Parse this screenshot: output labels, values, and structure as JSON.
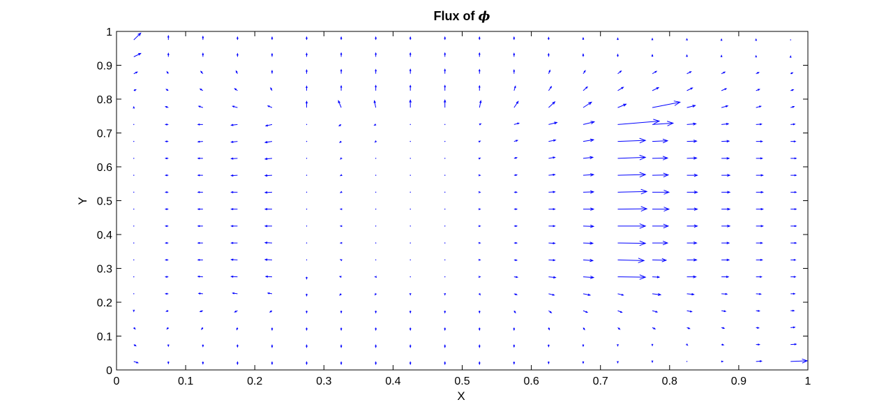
{
  "chart_data": {
    "type": "quiver",
    "title_text": "Flux of ",
    "title_symbol": "ϕ",
    "xlabel": "X",
    "ylabel": "Y",
    "xlim": [
      0,
      1
    ],
    "ylim": [
      0,
      1
    ],
    "xticks": [
      "0",
      "0.1",
      "0.2",
      "0.3",
      "0.4",
      "0.5",
      "0.6",
      "0.7",
      "0.8",
      "0.9",
      "1"
    ],
    "yticks": [
      "0",
      "0.1",
      "0.2",
      "0.3",
      "0.4",
      "0.5",
      "0.6",
      "0.7",
      "0.8",
      "0.9",
      "1"
    ],
    "grid": false,
    "arrow_color": "#0000ff",
    "grid_x": [
      0.025,
      0.075,
      0.125,
      0.175,
      0.225,
      0.275,
      0.325,
      0.375,
      0.425,
      0.475,
      0.525,
      0.575,
      0.625,
      0.675,
      0.725,
      0.775,
      0.825,
      0.875,
      0.925,
      0.975
    ],
    "grid_y": [
      0.975,
      0.925,
      0.875,
      0.825,
      0.775,
      0.725,
      0.675,
      0.625,
      0.575,
      0.525,
      0.475,
      0.425,
      0.375,
      0.325,
      0.275,
      0.225,
      0.175,
      0.125,
      0.075,
      0.025
    ],
    "u": [
      [
        0.01,
        0.0,
        0.0,
        0.0,
        0.0,
        0.0,
        0.0,
        0.0,
        0.0,
        0.0,
        0.0,
        0.0,
        0.0,
        0.0,
        0.0,
        0.0,
        0.0,
        0.0,
        0.0,
        0.0
      ],
      [
        0.01,
        0.0,
        0.0,
        0.0,
        0.0,
        0.0,
        0.0,
        0.0,
        0.0,
        0.0,
        0.0,
        0.0,
        0.0,
        0.0,
        0.0,
        0.0,
        0.0,
        0.0,
        0.0,
        0.0
      ],
      [
        0.005,
        -0.002,
        -0.003,
        -0.002,
        0.0,
        0.0,
        0.0,
        0.0,
        0.0,
        0.0,
        0.0,
        0.0,
        0.002,
        0.003,
        0.005,
        0.006,
        0.006,
        0.005,
        0.004,
        0.003
      ],
      [
        0.003,
        -0.003,
        -0.004,
        -0.004,
        -0.002,
        0.0,
        0.0,
        0.0,
        0.0,
        0.0,
        0.0,
        0.002,
        0.004,
        0.006,
        0.008,
        0.009,
        0.008,
        0.007,
        0.005,
        0.004
      ],
      [
        0.0,
        -0.004,
        -0.006,
        -0.007,
        -0.006,
        0.0,
        -0.004,
        -0.002,
        0.0,
        0.0,
        0.002,
        0.006,
        0.009,
        0.012,
        0.012,
        0.04,
        0.012,
        0.009,
        0.007,
        0.005
      ],
      [
        0.0,
        -0.004,
        -0.007,
        -0.009,
        -0.009,
        0.0,
        -0.003,
        -0.002,
        0.0,
        0.0,
        0.002,
        0.007,
        0.012,
        0.016,
        0.06,
        0.03,
        0.013,
        0.01,
        0.008,
        0.006
      ],
      [
        0.0,
        -0.004,
        -0.007,
        -0.009,
        -0.01,
        0.0,
        -0.002,
        -0.001,
        0.0,
        0.0,
        0.001,
        0.005,
        0.01,
        0.015,
        0.04,
        0.022,
        0.014,
        0.011,
        0.009,
        0.007
      ],
      [
        0.0,
        -0.004,
        -0.007,
        -0.009,
        -0.01,
        0.0,
        -0.001,
        0.0,
        0.0,
        0.0,
        0.001,
        0.004,
        0.009,
        0.014,
        0.04,
        0.022,
        0.014,
        0.011,
        0.009,
        0.008
      ],
      [
        0.0,
        -0.004,
        -0.007,
        -0.009,
        -0.01,
        0.0,
        -0.001,
        0.0,
        0.0,
        0.0,
        0.001,
        0.004,
        0.009,
        0.015,
        0.04,
        0.023,
        0.015,
        0.012,
        0.01,
        0.008
      ],
      [
        0.0,
        -0.004,
        -0.007,
        -0.009,
        -0.01,
        0.0,
        -0.001,
        0.0,
        0.0,
        0.0,
        0.001,
        0.004,
        0.009,
        0.015,
        0.042,
        0.024,
        0.015,
        0.012,
        0.01,
        0.008
      ],
      [
        0.0,
        -0.004,
        -0.007,
        -0.009,
        -0.01,
        0.0,
        -0.001,
        0.0,
        0.0,
        0.0,
        0.001,
        0.004,
        0.009,
        0.015,
        0.042,
        0.024,
        0.015,
        0.012,
        0.01,
        0.008
      ],
      [
        0.0,
        -0.004,
        -0.007,
        -0.009,
        -0.01,
        0.0,
        -0.001,
        0.0,
        0.0,
        0.0,
        0.001,
        0.004,
        0.009,
        0.015,
        0.04,
        0.023,
        0.015,
        0.012,
        0.01,
        0.008
      ],
      [
        0.0,
        -0.004,
        -0.007,
        -0.009,
        -0.01,
        0.0,
        -0.001,
        0.0,
        0.0,
        0.0,
        0.001,
        0.004,
        0.009,
        0.014,
        0.04,
        0.022,
        0.014,
        0.011,
        0.009,
        0.008
      ],
      [
        0.0,
        -0.004,
        -0.007,
        -0.009,
        -0.01,
        0.0,
        -0.001,
        0.0,
        0.0,
        0.0,
        0.001,
        0.004,
        0.009,
        0.014,
        0.038,
        0.02,
        0.014,
        0.011,
        0.009,
        0.007
      ],
      [
        0.0,
        -0.004,
        -0.007,
        -0.009,
        -0.009,
        0.0,
        -0.002,
        -0.001,
        0.0,
        0.0,
        0.001,
        0.005,
        0.01,
        0.015,
        0.04,
        0.01,
        0.013,
        0.01,
        0.008,
        0.007
      ],
      [
        0.0,
        -0.004,
        -0.006,
        -0.007,
        -0.006,
        0.0,
        -0.002,
        -0.001,
        0.0,
        0.0,
        0.001,
        0.004,
        0.008,
        0.01,
        0.008,
        0.012,
        0.01,
        0.008,
        0.007,
        0.006
      ],
      [
        0.0,
        -0.003,
        -0.004,
        -0.004,
        -0.003,
        0.0,
        0.0,
        0.0,
        0.0,
        0.0,
        0.0,
        0.002,
        0.004,
        0.006,
        0.006,
        0.007,
        0.007,
        0.006,
        0.005,
        0.005
      ],
      [
        0.002,
        -0.002,
        -0.002,
        -0.001,
        0.0,
        0.0,
        0.0,
        0.0,
        0.0,
        0.0,
        0.0,
        0.0,
        0.001,
        0.002,
        0.003,
        0.004,
        0.004,
        0.004,
        0.004,
        0.006
      ],
      [
        0.003,
        0.0,
        0.0,
        0.0,
        0.0,
        0.0,
        0.0,
        0.0,
        0.0,
        0.0,
        0.0,
        0.0,
        0.0,
        0.0,
        0.0,
        0.0,
        0.001,
        0.003,
        0.005,
        0.008
      ],
      [
        0.006,
        0.0,
        0.0,
        0.0,
        0.0,
        0.0,
        0.0,
        0.0,
        0.0,
        0.0,
        0.0,
        0.0,
        0.0,
        0.0,
        0.0,
        0.0,
        0.0,
        0.002,
        0.008,
        0.024
      ]
    ],
    "v": [
      [
        0.02,
        0.012,
        0.01,
        0.008,
        0.008,
        0.008,
        0.008,
        0.008,
        0.008,
        0.008,
        0.008,
        0.008,
        0.007,
        0.006,
        0.005,
        0.004,
        0.003,
        0.002,
        0.002,
        0.001
      ],
      [
        0.01,
        0.01,
        0.01,
        0.009,
        0.009,
        0.01,
        0.011,
        0.011,
        0.011,
        0.011,
        0.011,
        0.01,
        0.009,
        0.008,
        0.007,
        0.006,
        0.005,
        0.004,
        0.003,
        0.002
      ],
      [
        0.005,
        0.006,
        0.007,
        0.008,
        0.009,
        0.011,
        0.012,
        0.012,
        0.013,
        0.013,
        0.012,
        0.011,
        0.01,
        0.009,
        0.008,
        0.007,
        0.006,
        0.005,
        0.004,
        0.003
      ],
      [
        0.003,
        0.004,
        0.005,
        0.006,
        0.008,
        0.013,
        0.014,
        0.015,
        0.015,
        0.015,
        0.014,
        0.013,
        0.012,
        0.011,
        0.01,
        0.009,
        0.008,
        0.006,
        0.004,
        0.003
      ],
      [
        0.002,
        0.003,
        0.004,
        0.004,
        0.005,
        0.018,
        0.02,
        0.02,
        0.022,
        0.022,
        0.02,
        0.018,
        0.017,
        0.016,
        0.01,
        0.016,
        0.006,
        0.005,
        0.004,
        0.003
      ],
      [
        0.0,
        0.0,
        0.0,
        -0.002,
        -0.004,
        0.0,
        -0.004,
        -0.002,
        0.0,
        0.0,
        0.002,
        0.004,
        0.006,
        0.008,
        0.01,
        0.004,
        0.002,
        0.002,
        0.001,
        0.001
      ],
      [
        0.0,
        0.0,
        -0.001,
        -0.002,
        -0.003,
        -0.001,
        -0.003,
        -0.002,
        0.0,
        0.0,
        0.001,
        0.003,
        0.004,
        0.005,
        0.003,
        0.002,
        0.001,
        0.001,
        0.0,
        0.0
      ],
      [
        0.0,
        0.0,
        0.0,
        -0.001,
        -0.002,
        -0.001,
        -0.002,
        -0.001,
        0.0,
        0.0,
        0.001,
        0.002,
        0.003,
        0.003,
        0.003,
        0.001,
        0.001,
        0.0,
        0.0,
        0.0
      ],
      [
        0.0,
        0.0,
        0.0,
        -0.001,
        -0.001,
        -0.001,
        -0.001,
        0.0,
        0.0,
        0.0,
        0.0,
        0.001,
        0.002,
        0.002,
        0.002,
        0.001,
        0.0,
        0.0,
        0.0,
        0.0
      ],
      [
        0.0,
        0.0,
        0.0,
        0.0,
        -0.001,
        -0.001,
        -0.001,
        0.0,
        0.0,
        0.0,
        0.0,
        0.0,
        0.001,
        0.001,
        0.002,
        0.0,
        0.0,
        0.0,
        0.0,
        0.0
      ],
      [
        0.0,
        0.0,
        0.0,
        0.0,
        0.0,
        0.0,
        0.0,
        0.0,
        0.0,
        0.0,
        0.0,
        0.0,
        0.0,
        0.0,
        0.001,
        0.0,
        0.0,
        0.0,
        0.0,
        0.0
      ],
      [
        0.0,
        0.0,
        0.0,
        0.0,
        0.0,
        0.0,
        0.0,
        0.0,
        0.0,
        0.0,
        0.0,
        0.0,
        0.0,
        -0.001,
        0.0,
        0.0,
        0.0,
        0.0,
        0.0,
        0.0
      ],
      [
        0.0,
        0.0,
        0.0,
        0.0,
        0.001,
        0.0,
        0.0,
        0.0,
        0.0,
        0.0,
        0.0,
        0.0,
        -0.001,
        -0.001,
        -0.001,
        0.0,
        0.0,
        0.0,
        0.0,
        0.0
      ],
      [
        0.0,
        0.0,
        0.0,
        0.001,
        0.001,
        0.0,
        0.001,
        0.0,
        0.0,
        0.0,
        0.0,
        -0.001,
        -0.001,
        -0.002,
        -0.002,
        -0.001,
        0.0,
        0.0,
        0.0,
        0.0
      ],
      [
        0.0,
        0.0,
        0.001,
        0.001,
        0.001,
        -0.006,
        0.001,
        0.0,
        0.0,
        0.0,
        0.0,
        -0.001,
        -0.002,
        -0.002,
        -0.001,
        -0.001,
        0.0,
        0.0,
        0.0,
        0.0
      ],
      [
        0.0,
        0.0,
        0.001,
        0.002,
        0.002,
        -0.006,
        -0.004,
        -0.003,
        -0.003,
        -0.003,
        -0.003,
        -0.003,
        -0.004,
        -0.004,
        -0.004,
        -0.003,
        -0.002,
        -0.001,
        -0.001,
        0.0
      ],
      [
        -0.002,
        -0.002,
        -0.003,
        -0.004,
        -0.004,
        -0.006,
        -0.006,
        -0.006,
        -0.006,
        -0.006,
        -0.006,
        -0.006,
        -0.006,
        -0.005,
        -0.005,
        -0.004,
        -0.003,
        -0.002,
        -0.001,
        0.0
      ],
      [
        -0.004,
        -0.004,
        -0.005,
        -0.006,
        -0.007,
        -0.007,
        -0.007,
        -0.007,
        -0.007,
        -0.007,
        -0.007,
        -0.007,
        -0.006,
        -0.006,
        -0.005,
        -0.004,
        -0.003,
        -0.002,
        -0.001,
        0.001
      ],
      [
        -0.004,
        -0.005,
        -0.006,
        -0.007,
        -0.008,
        -0.008,
        -0.008,
        -0.008,
        -0.008,
        -0.008,
        -0.008,
        -0.007,
        -0.006,
        -0.005,
        -0.004,
        -0.003,
        -0.002,
        -0.001,
        0.0,
        0.001
      ],
      [
        -0.004,
        -0.006,
        -0.007,
        -0.008,
        -0.008,
        -0.008,
        -0.008,
        -0.008,
        -0.008,
        -0.008,
        -0.008,
        -0.007,
        -0.006,
        -0.005,
        -0.004,
        -0.002,
        -0.001,
        0.0,
        0.001,
        0.002
      ]
    ]
  }
}
